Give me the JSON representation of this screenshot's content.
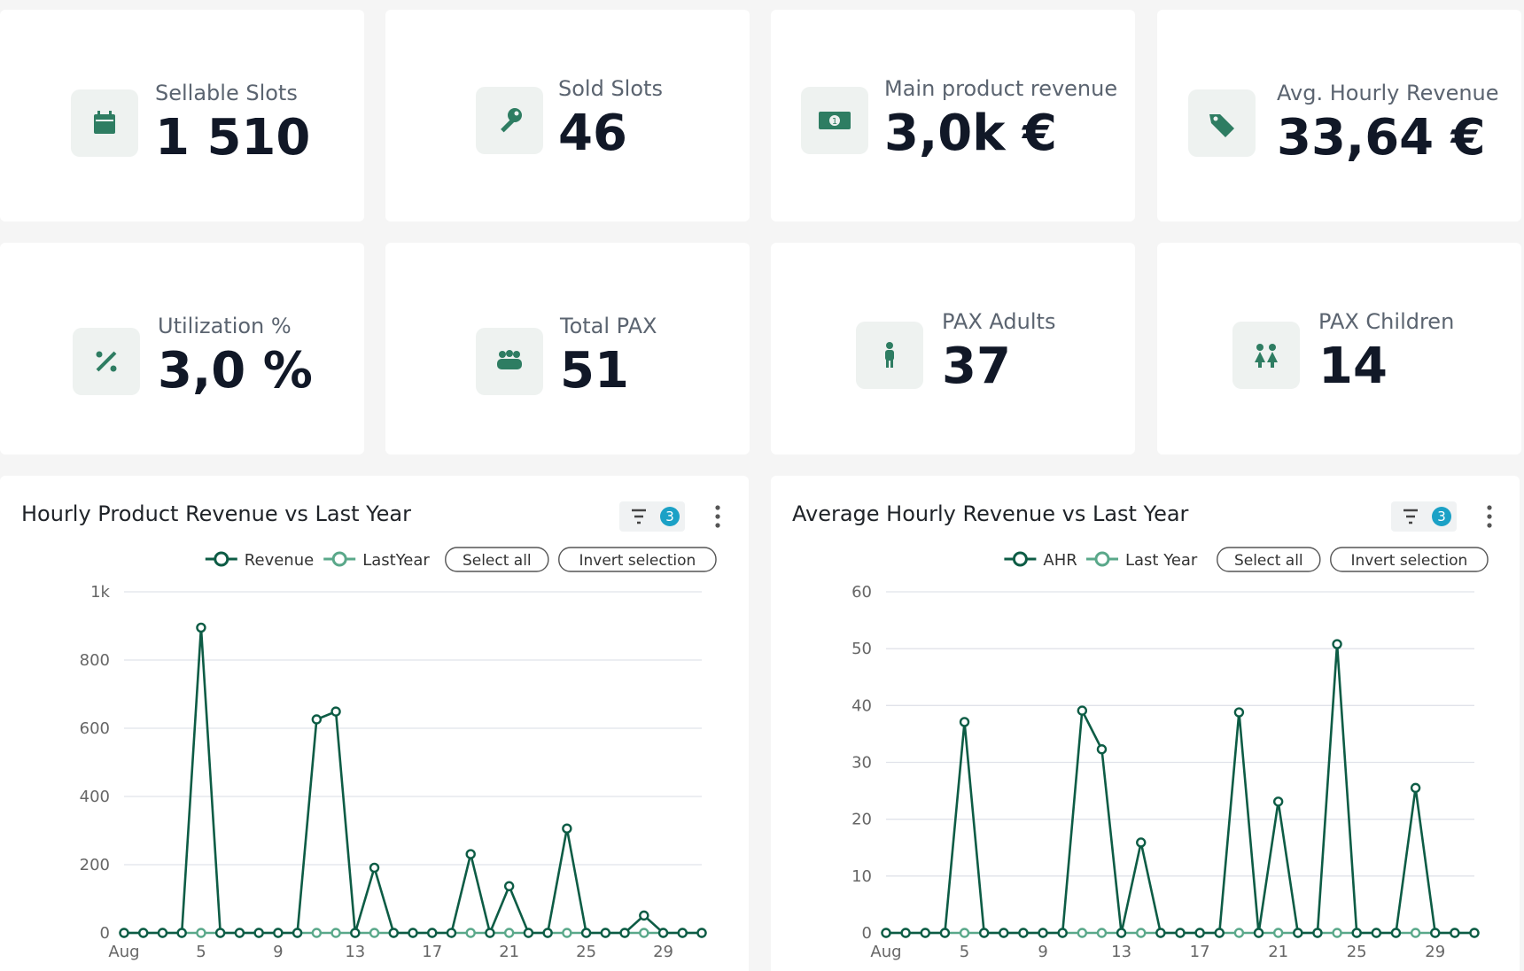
{
  "kpis": [
    {
      "label": "Sellable Slots",
      "value": "1 510"
    },
    {
      "label": "Sold Slots",
      "value": "46"
    },
    {
      "label": "Main product revenue",
      "value": "3,0k €"
    },
    {
      "label": "Avg. Hourly Revenue",
      "value": "33,64 €"
    },
    {
      "label": "Utilization %",
      "value": "3,0 %"
    },
    {
      "label": "Total PAX",
      "value": "51"
    },
    {
      "label": "PAX Adults",
      "value": "37"
    },
    {
      "label": "PAX Children",
      "value": "14"
    }
  ],
  "chart_data": [
    {
      "type": "line",
      "title": "Hourly Product Revenue vs Last Year",
      "filter_count": 3,
      "controls": [
        "Select all",
        "Invert selection"
      ],
      "categories": [
        "Aug",
        null,
        null,
        null,
        "5",
        null,
        null,
        null,
        "9",
        null,
        null,
        null,
        "13",
        null,
        null,
        null,
        "17",
        null,
        null,
        null,
        "21",
        null,
        null,
        null,
        "25",
        null,
        null,
        null,
        "29",
        null,
        null
      ],
      "series": [
        {
          "name": "Revenue",
          "color": "#0d5c45",
          "values": [
            0,
            0,
            0,
            0,
            895,
            0,
            0,
            0,
            0,
            0,
            626,
            649,
            0,
            191,
            0,
            0,
            0,
            0,
            231,
            0,
            137,
            0,
            0,
            306,
            0,
            0,
            0,
            51,
            0,
            0,
            0
          ]
        },
        {
          "name": "LastYear",
          "color": "#5aa88a",
          "values": [
            0,
            0,
            0,
            0,
            0,
            0,
            0,
            0,
            0,
            0,
            0,
            0,
            0,
            0,
            0,
            0,
            0,
            0,
            0,
            0,
            0,
            0,
            0,
            0,
            0,
            0,
            0,
            0,
            0,
            0,
            0
          ]
        }
      ],
      "ylim": [
        0,
        1000
      ],
      "yticks": [
        0,
        200,
        400,
        600,
        800,
        {
          "value": 1000,
          "label": "1k"
        }
      ],
      "grid": true
    },
    {
      "type": "line",
      "title": "Average Hourly Revenue vs Last Year",
      "filter_count": 3,
      "controls": [
        "Select all",
        "Invert selection"
      ],
      "categories": [
        "Aug",
        null,
        null,
        null,
        "5",
        null,
        null,
        null,
        "9",
        null,
        null,
        null,
        "13",
        null,
        null,
        null,
        "17",
        null,
        null,
        null,
        "21",
        null,
        null,
        null,
        "25",
        null,
        null,
        null,
        "29",
        null,
        null
      ],
      "series": [
        {
          "name": "AHR",
          "color": "#0d5c45",
          "values": [
            0,
            0,
            0,
            0,
            37.1,
            0,
            0,
            0,
            0,
            0,
            39.1,
            32.3,
            0,
            15.9,
            0,
            0,
            0,
            0,
            38.8,
            0,
            23.1,
            0,
            0,
            50.8,
            0,
            0,
            0,
            25.5,
            0,
            0,
            0
          ]
        },
        {
          "name": "Last Year",
          "color": "#5aa88a",
          "values": [
            0,
            0,
            0,
            0,
            0,
            0,
            0,
            0,
            0,
            0,
            0,
            0,
            0,
            0,
            0,
            0,
            0,
            0,
            0,
            0,
            0,
            0,
            0,
            0,
            0,
            0,
            0,
            0,
            0,
            0,
            0
          ]
        }
      ],
      "ylim": [
        0,
        60
      ],
      "yticks": [
        0,
        10,
        20,
        30,
        40,
        50,
        60
      ],
      "grid": true
    }
  ]
}
